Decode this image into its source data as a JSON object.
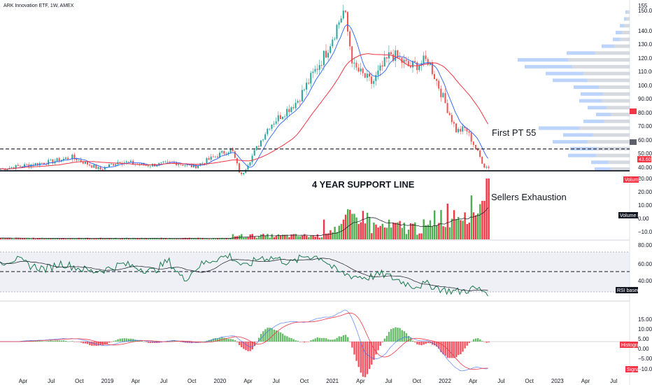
{
  "chart_data": {
    "symbol_title": "ARK Innovation ETF, 1W, AMEX",
    "type": "candlestick",
    "colors": {
      "up": "#26a69a",
      "down": "#ef5350",
      "ma_blue": "#2962ff",
      "ma_red": "#f23645",
      "rsi": "#1b7a4e",
      "vol_up": "#4caf50",
      "vol_down": "#f23645",
      "profile": "#90b8f8",
      "profile_gray": "#c5c9d2"
    },
    "x_labels": [
      "Apr",
      "Jul",
      "Oct",
      "2019",
      "Apr",
      "Jul",
      "Oct",
      "2020",
      "Apr",
      "Jul",
      "Oct",
      "2021",
      "Apr",
      "Jul",
      "Oct",
      "2022",
      "Apr",
      "Jul",
      "Oct",
      "2023",
      "Apr",
      "Jul"
    ],
    "price_axis": [
      155,
      "150.00",
      "140.00",
      "130.00",
      "120.00",
      "110.00",
      "100.00",
      "90.00",
      "80.00",
      "70.00",
      "60.00",
      "50.00",
      "40.00"
    ],
    "price_ylim": [
      38,
      160
    ],
    "last_price": "43.60",
    "price_series": [
      {
        "x": "2018-01",
        "y": 40
      },
      {
        "x": "2018-04",
        "y": 43
      },
      {
        "x": "2018-07",
        "y": 46
      },
      {
        "x": "2018-09",
        "y": 49
      },
      {
        "x": "2018-12",
        "y": 40
      },
      {
        "x": "2019-02",
        "y": 46
      },
      {
        "x": "2019-05",
        "y": 43
      },
      {
        "x": "2019-08",
        "y": 45
      },
      {
        "x": "2019-10",
        "y": 42
      },
      {
        "x": "2020-01",
        "y": 52
      },
      {
        "x": "2020-02",
        "y": 55
      },
      {
        "x": "2020-03",
        "y": 35
      },
      {
        "x": "2020-06",
        "y": 72
      },
      {
        "x": "2020-09",
        "y": 90
      },
      {
        "x": "2020-12",
        "y": 125
      },
      {
        "x": "2021-02",
        "y": 157
      },
      {
        "x": "2021-03",
        "y": 115
      },
      {
        "x": "2021-05",
        "y": 103
      },
      {
        "x": "2021-07",
        "y": 125
      },
      {
        "x": "2021-09",
        "y": 115
      },
      {
        "x": "2021-11",
        "y": 120
      },
      {
        "x": "2022-01",
        "y": 85
      },
      {
        "x": "2022-02",
        "y": 68
      },
      {
        "x": "2022-03",
        "y": 70
      },
      {
        "x": "2022-05",
        "y": 42
      }
    ],
    "annotations": [
      "First PT 55",
      "4 YEAR SUPPORT LINE",
      "Sellers Exhaustion"
    ],
    "levels": {
      "first_pt": 55,
      "support": 35
    },
    "volume_axis": [
      "30.00",
      "20.00",
      "10.00",
      "0.00",
      "−10.00"
    ],
    "volume_label": "Volume",
    "volume_ma_label": "Volume MA",
    "rsi_axis": [
      "80.00",
      "60.00",
      "40.00"
    ],
    "rsi_label": "RSI based MA",
    "rsi_series": [
      66,
      70,
      62,
      58,
      65,
      60,
      55,
      58,
      64,
      60,
      55,
      68,
      45,
      62,
      70,
      74,
      60,
      72,
      71,
      65,
      74,
      72,
      55,
      50,
      48,
      52,
      45,
      38,
      40,
      33,
      31,
      35,
      30
    ],
    "macd_axis": [
      "15.00",
      "10.00",
      "5.00",
      "0.00",
      "−5.00",
      "−10.00"
    ],
    "macd_label": "Histogram",
    "signal_label": "Signal"
  }
}
